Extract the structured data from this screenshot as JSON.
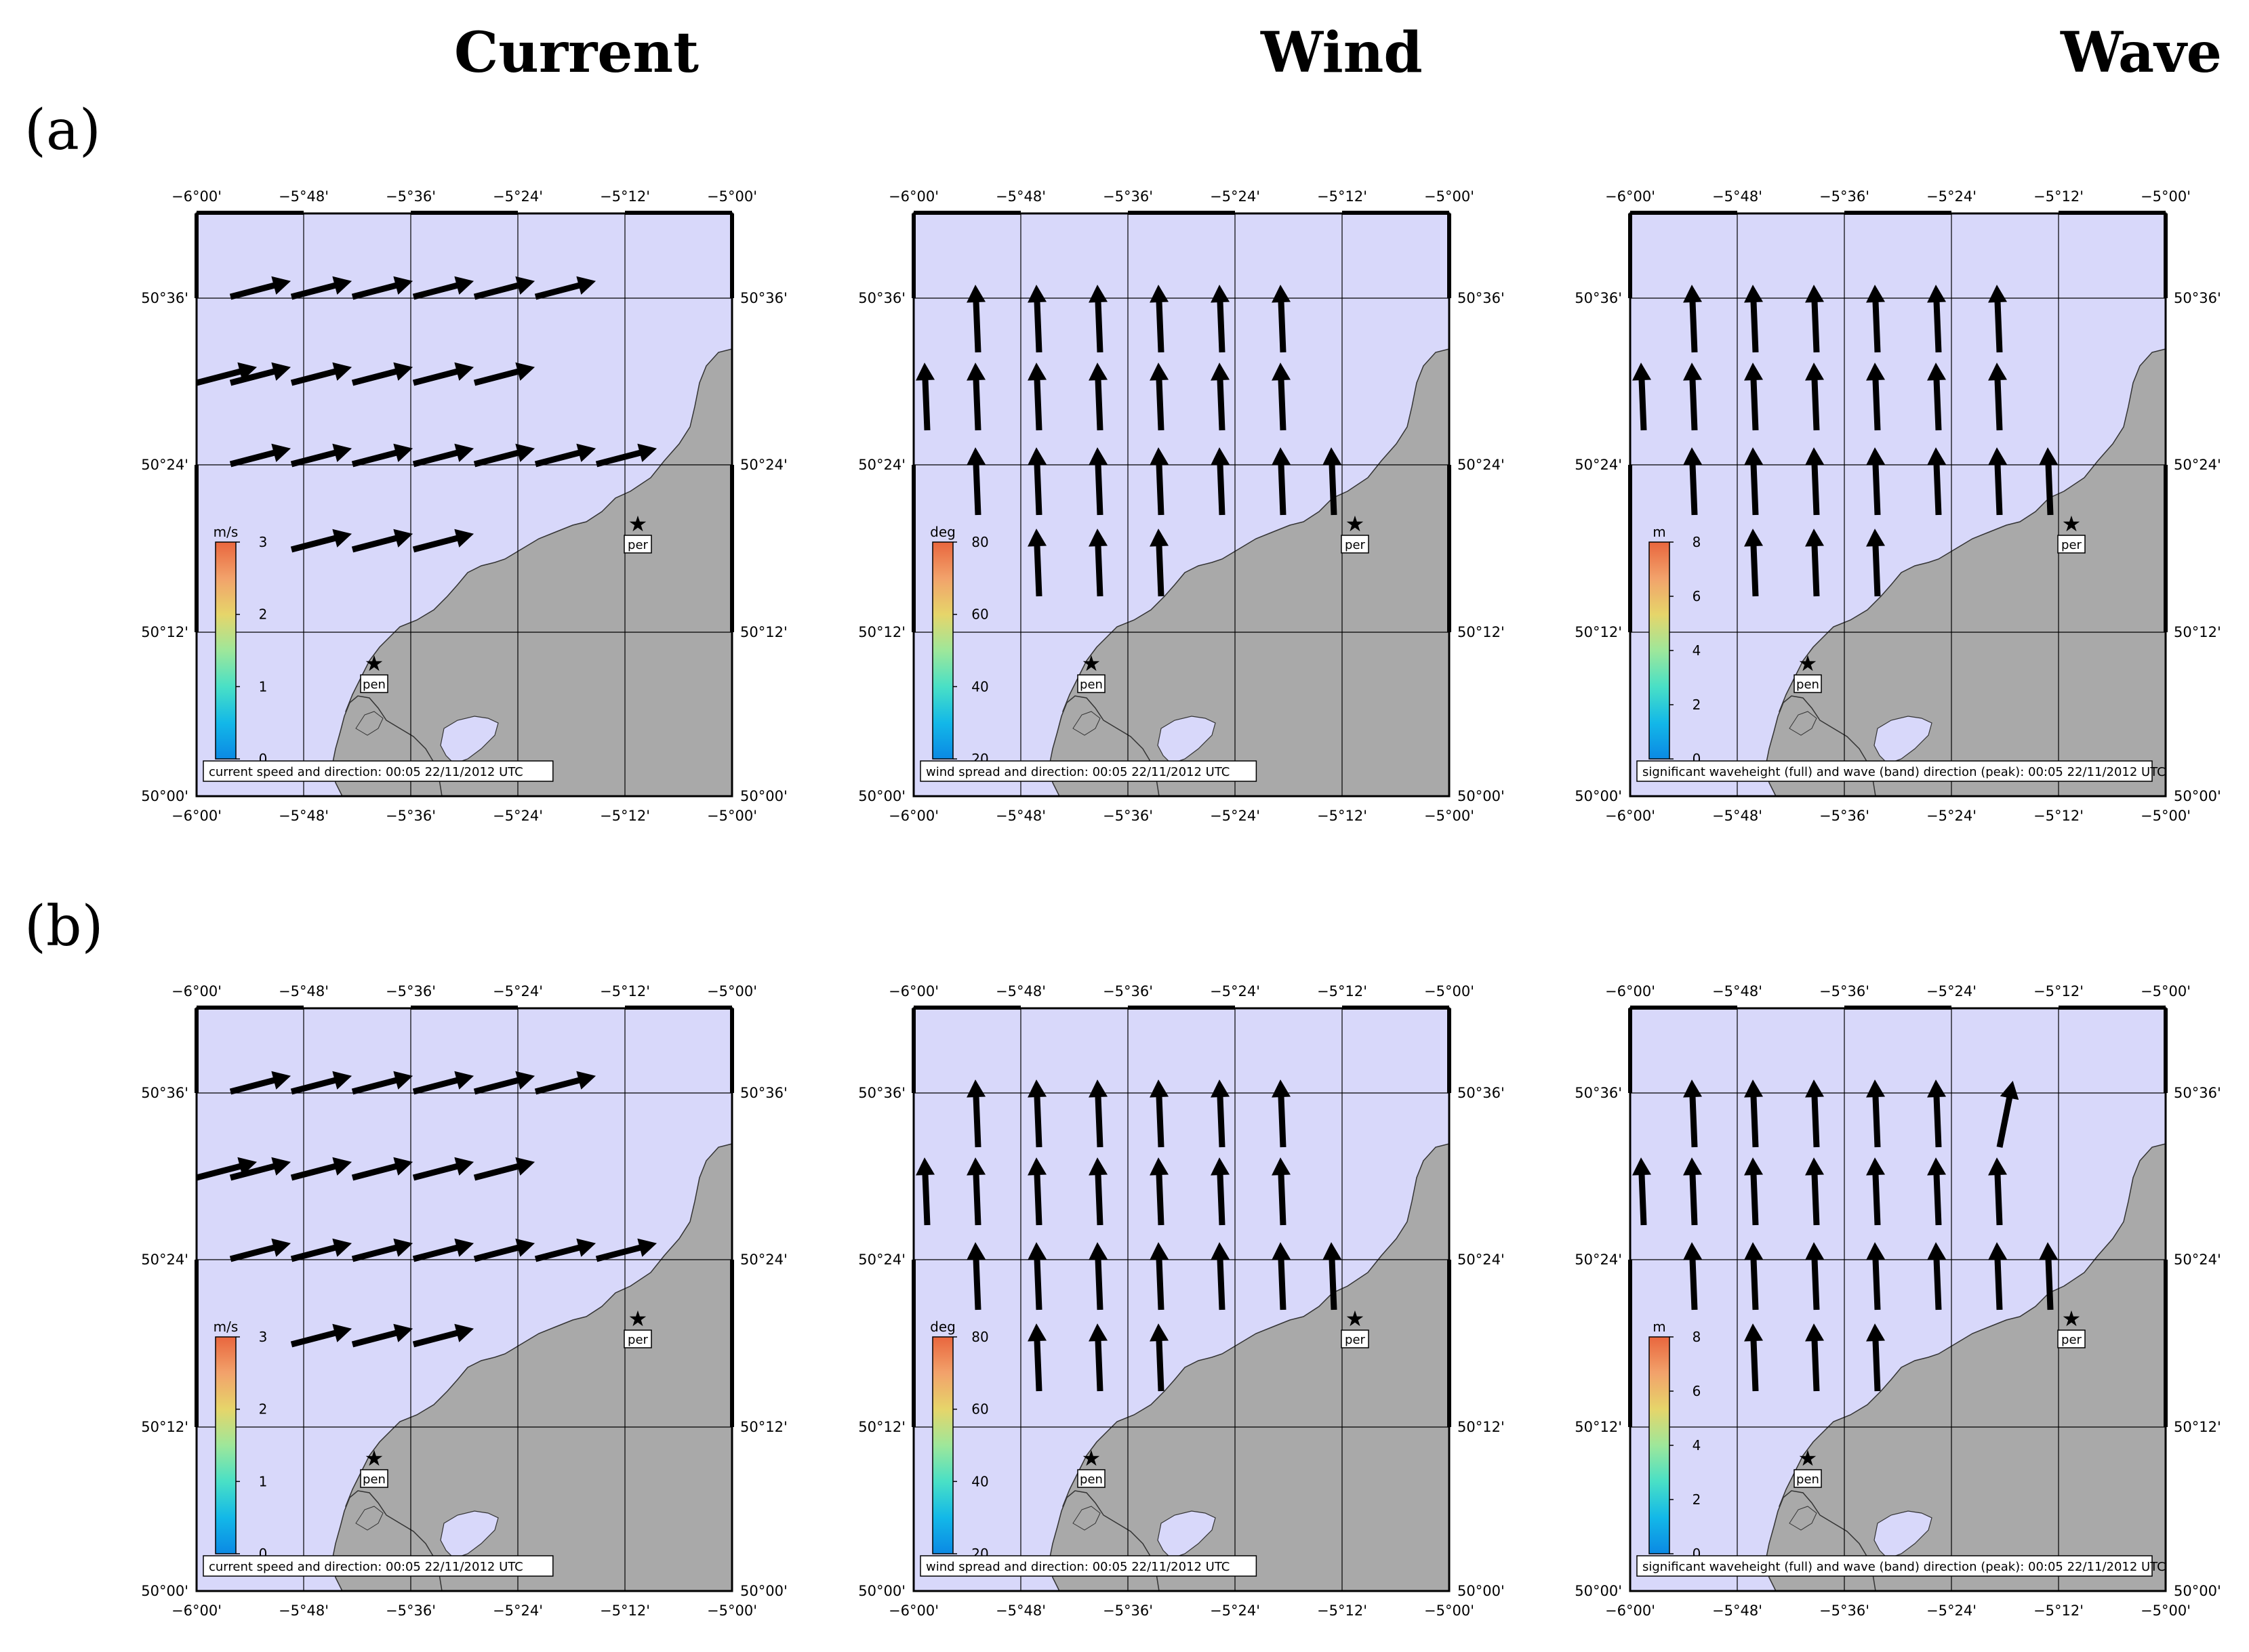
{
  "headers": {
    "current": "Current",
    "wind": "Wind",
    "wave": "Wave"
  },
  "rows": [
    {
      "label": "(a)"
    },
    {
      "label": "(b)"
    }
  ],
  "axes": {
    "lon_ticks": [
      "−6°00'",
      "−5°48'",
      "−5°36'",
      "−5°24'",
      "−5°12'",
      "−5°00'"
    ],
    "lat_ticks": [
      "50°00'",
      "50°12'",
      "50°24'",
      "50°36'"
    ]
  },
  "stations": [
    {
      "name": "pen"
    },
    {
      "name": "per"
    }
  ],
  "colors": {
    "sea": "#d8d8fa",
    "land": "#a9a9a9",
    "current_fill": "#c6ea8e",
    "wind_fill": "#f7ab88",
    "wave_fill": "#9ff7c4",
    "wave_patch": "#d3ee9a",
    "wind_patch": "#f49072"
  },
  "panels": {
    "current": {
      "colorbar": {
        "unit": "m/s",
        "ticks": [
          "0",
          "1",
          "2",
          "3"
        ]
      },
      "caption": "current speed and direction: 00:05 22/11/2012 UTC"
    },
    "wind": {
      "colorbar": {
        "unit": "deg",
        "ticks": [
          "20",
          "40",
          "60",
          "80"
        ]
      },
      "caption": "wind spread and direction: 00:05 22/11/2012 UTC"
    },
    "wave": {
      "colorbar": {
        "unit": "m",
        "ticks": [
          "0",
          "2",
          "4",
          "6",
          "8"
        ]
      },
      "caption": "significant waveheight (full) and wave (band) direction (peak): 00:05 22/11/2012 UTC"
    }
  }
}
